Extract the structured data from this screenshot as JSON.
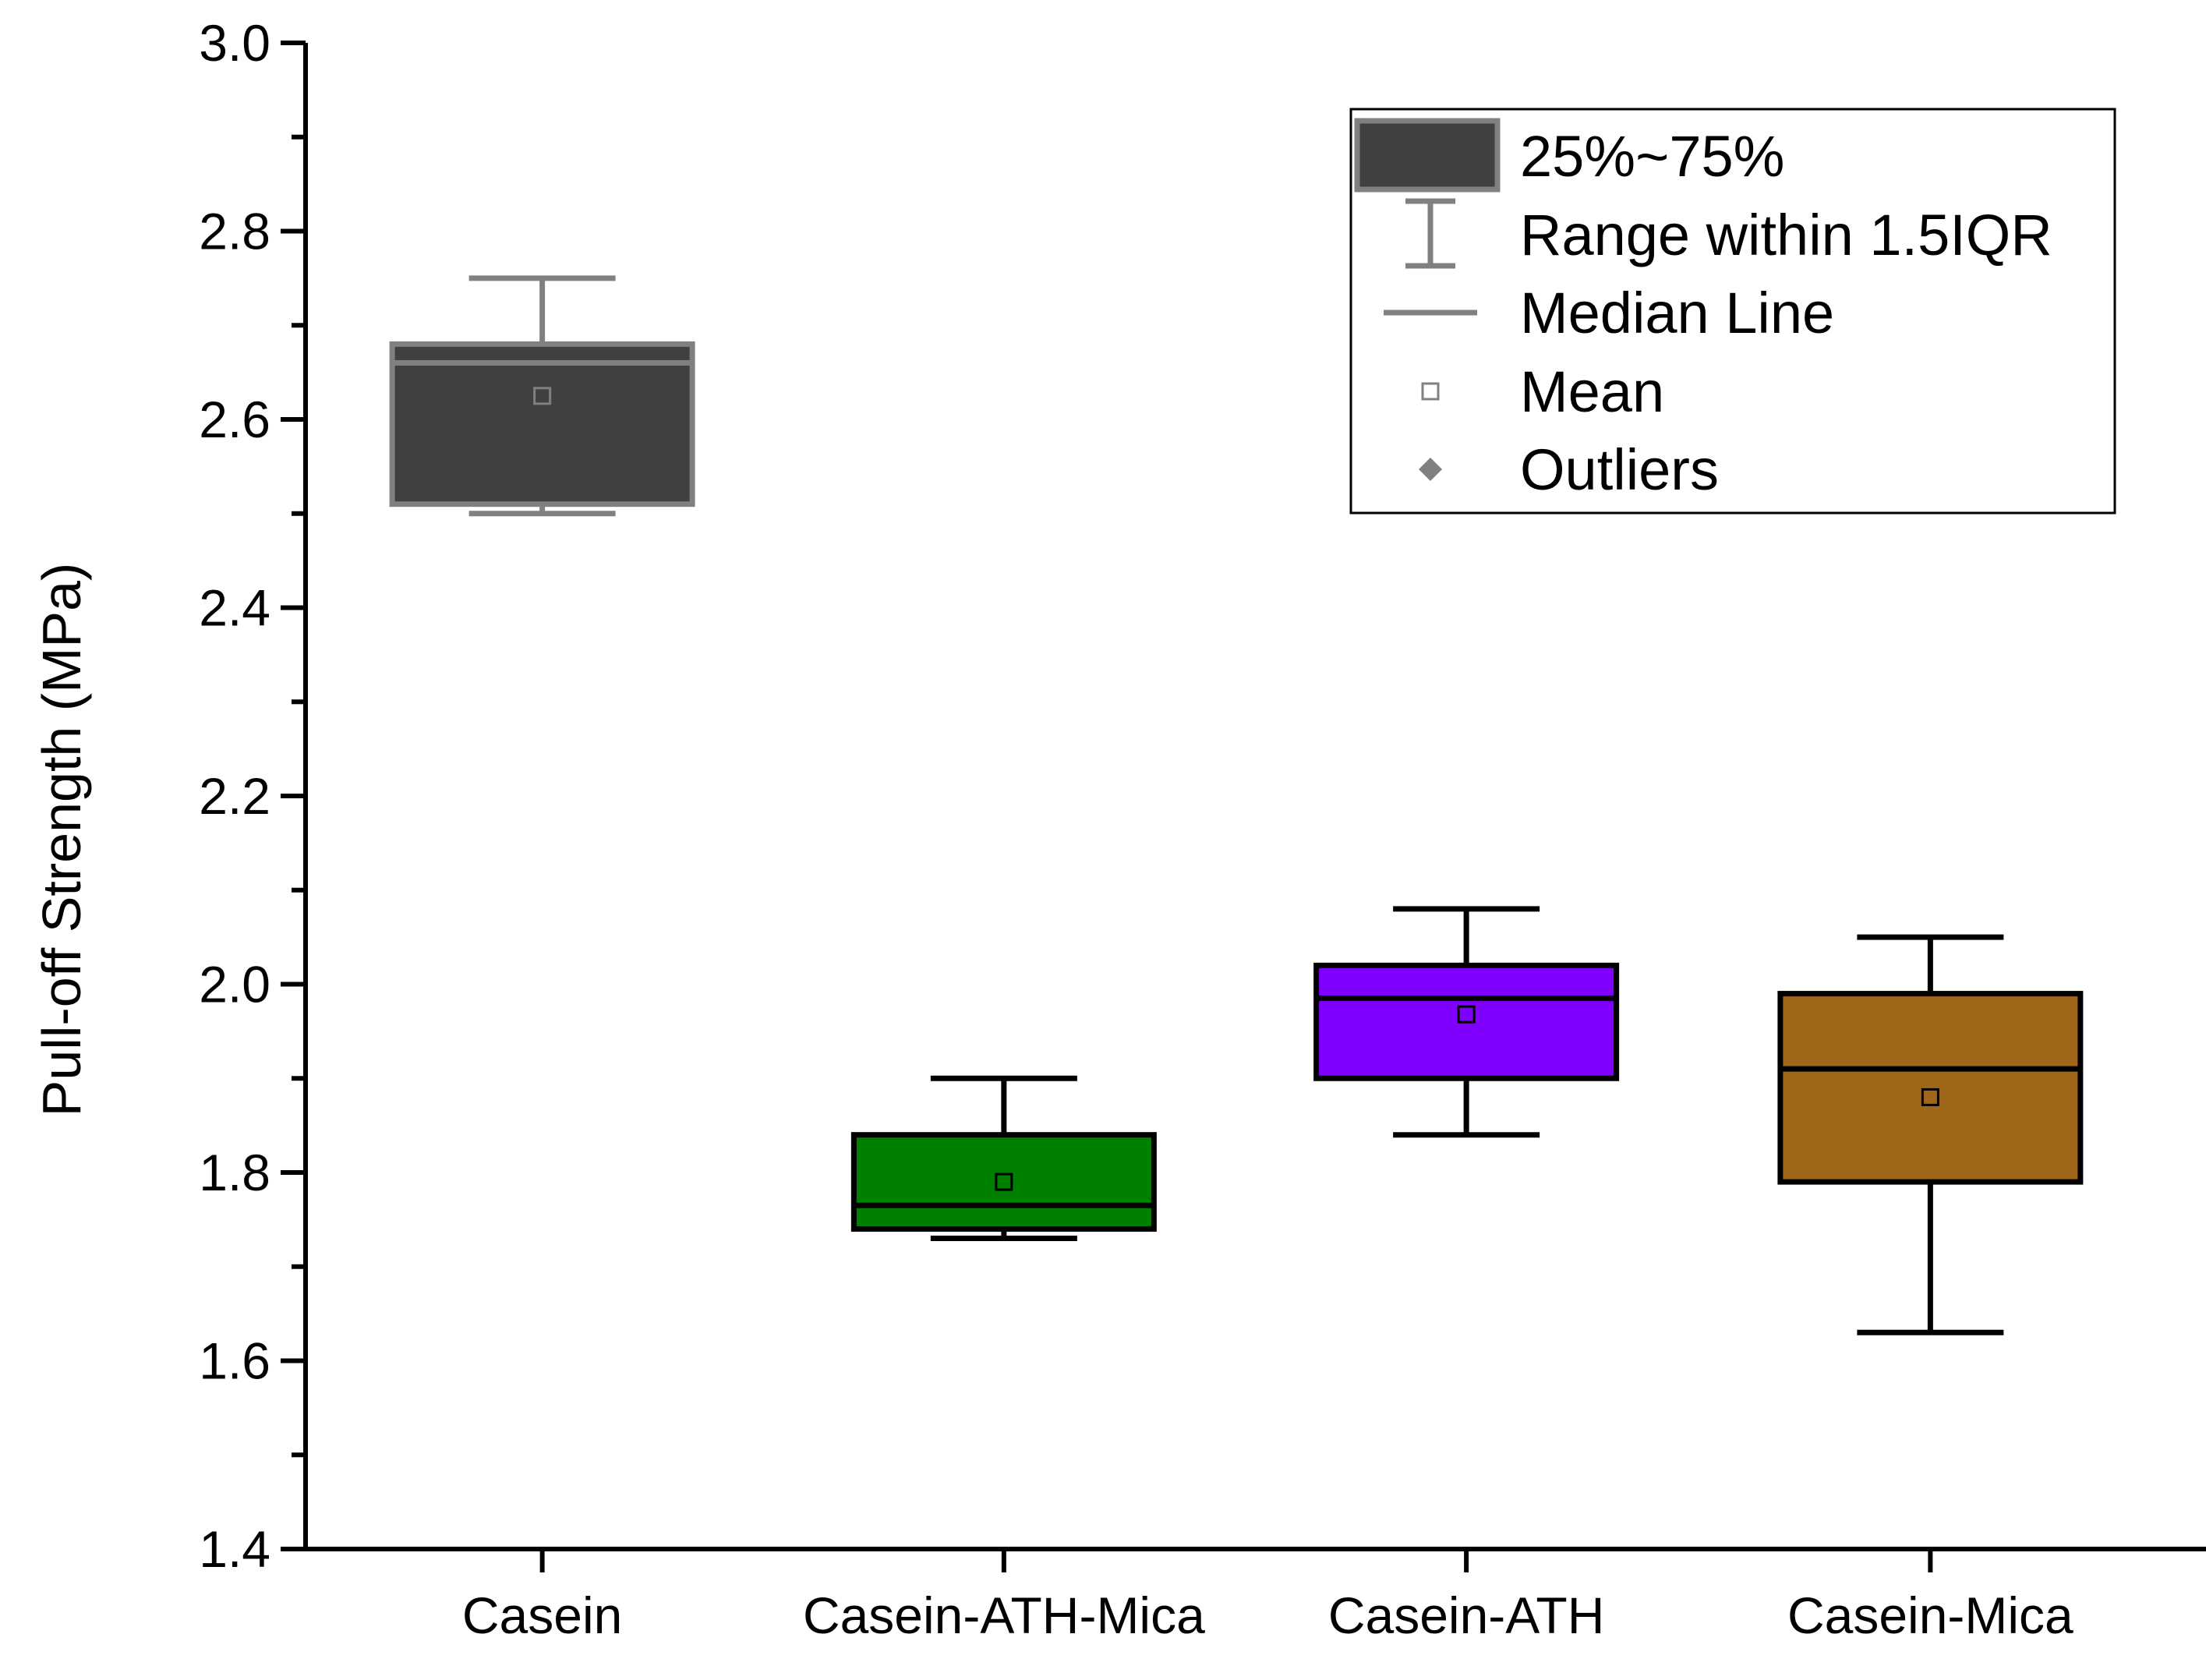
{
  "chart_data": {
    "type": "box",
    "title": "",
    "xlabel": "",
    "ylabel": "Pull-off Strength (MPa)",
    "ylim": [
      1.4,
      3.0
    ],
    "yticks": [
      "1.4",
      "1.6",
      "1.8",
      "2.0",
      "2.2",
      "2.4",
      "2.6",
      "2.8",
      "3.0"
    ],
    "yminor_step": 0.1,
    "categories": [
      "Casein",
      "Casein-ATH-Mica",
      "Casein-ATH",
      "Casein-Mica"
    ],
    "boxes": [
      {
        "name": "Casein",
        "whisker_low": 2.5,
        "q1": 2.51,
        "median": 2.66,
        "q3": 2.68,
        "whisker_high": 2.75,
        "mean": 2.625,
        "fill": "#404040",
        "stroke": "#808080"
      },
      {
        "name": "Casein-ATH-Mica",
        "whisker_low": 1.73,
        "q1": 1.74,
        "median": 1.765,
        "q3": 1.84,
        "whisker_high": 1.9,
        "mean": 1.79,
        "fill": "#008000",
        "stroke": "#000000"
      },
      {
        "name": "Casein-ATH",
        "whisker_low": 1.84,
        "q1": 1.9,
        "median": 1.985,
        "q3": 2.02,
        "whisker_high": 2.08,
        "mean": 1.968,
        "fill": "#8000ff",
        "stroke": "#000000"
      },
      {
        "name": "Casein-Mica",
        "whisker_low": 1.63,
        "q1": 1.79,
        "median": 1.91,
        "q3": 1.99,
        "whisker_high": 2.05,
        "mean": 1.88,
        "fill": "#a0661a",
        "stroke": "#000000"
      }
    ],
    "legend": {
      "position": "top-right",
      "items": [
        {
          "symbol": "box",
          "label": "25%~75%"
        },
        {
          "symbol": "whisker",
          "label": "Range within 1.5IQR"
        },
        {
          "symbol": "median",
          "label": "Median Line"
        },
        {
          "symbol": "mean",
          "label": "Mean"
        },
        {
          "symbol": "outlier",
          "label": "Outliers"
        }
      ],
      "colors": {
        "box_fill": "#404040",
        "stroke": "#808080"
      }
    }
  }
}
